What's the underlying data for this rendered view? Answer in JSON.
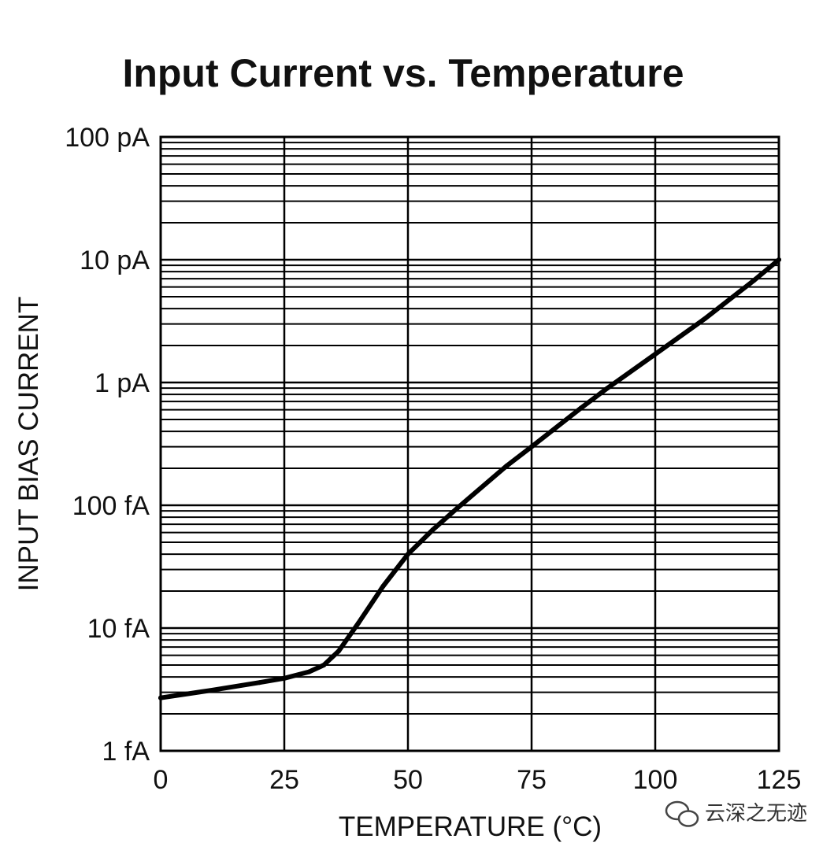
{
  "chart_data": {
    "type": "line",
    "title": "Input Current vs. Temperature",
    "xlabel": "TEMPERATURE (°C)",
    "ylabel": "INPUT BIAS CURRENT",
    "xlim": [
      0,
      125
    ],
    "ylim_amps": [
      1e-15,
      1e-10
    ],
    "y_scale": "log",
    "grid": true,
    "x_ticks": [
      {
        "value": 0,
        "label": "0"
      },
      {
        "value": 25,
        "label": "25"
      },
      {
        "value": 50,
        "label": "50"
      },
      {
        "value": 75,
        "label": "75"
      },
      {
        "value": 100,
        "label": "100"
      },
      {
        "value": 125,
        "label": "125"
      }
    ],
    "y_ticks": [
      {
        "value": 1e-15,
        "label": "1 fA"
      },
      {
        "value": 1e-14,
        "label": "10 fA"
      },
      {
        "value": 1e-13,
        "label": "100 fA"
      },
      {
        "value": 1e-12,
        "label": "1 pA"
      },
      {
        "value": 1e-11,
        "label": "10 pA"
      },
      {
        "value": 1e-10,
        "label": "100 pA"
      }
    ],
    "series": [
      {
        "x": [
          0,
          10,
          20,
          25,
          30,
          33,
          36,
          40,
          45,
          50,
          55,
          60,
          70,
          75,
          85,
          90,
          100,
          110,
          120,
          125
        ],
        "y": [
          2.7e-15,
          3.1e-15,
          3.6e-15,
          3.9e-15,
          4.4e-15,
          5e-15,
          6.5e-15,
          1.1e-14,
          2.2e-14,
          4e-14,
          6.3e-14,
          9.5e-14,
          2.1e-13,
          3e-13,
          6.2e-13,
          8.8e-13,
          1.7e-12,
          3.3e-12,
          6.8e-12,
          1e-11
        ]
      }
    ]
  },
  "watermark": {
    "text": "云深之无迹",
    "icon": "wechat-icon"
  }
}
